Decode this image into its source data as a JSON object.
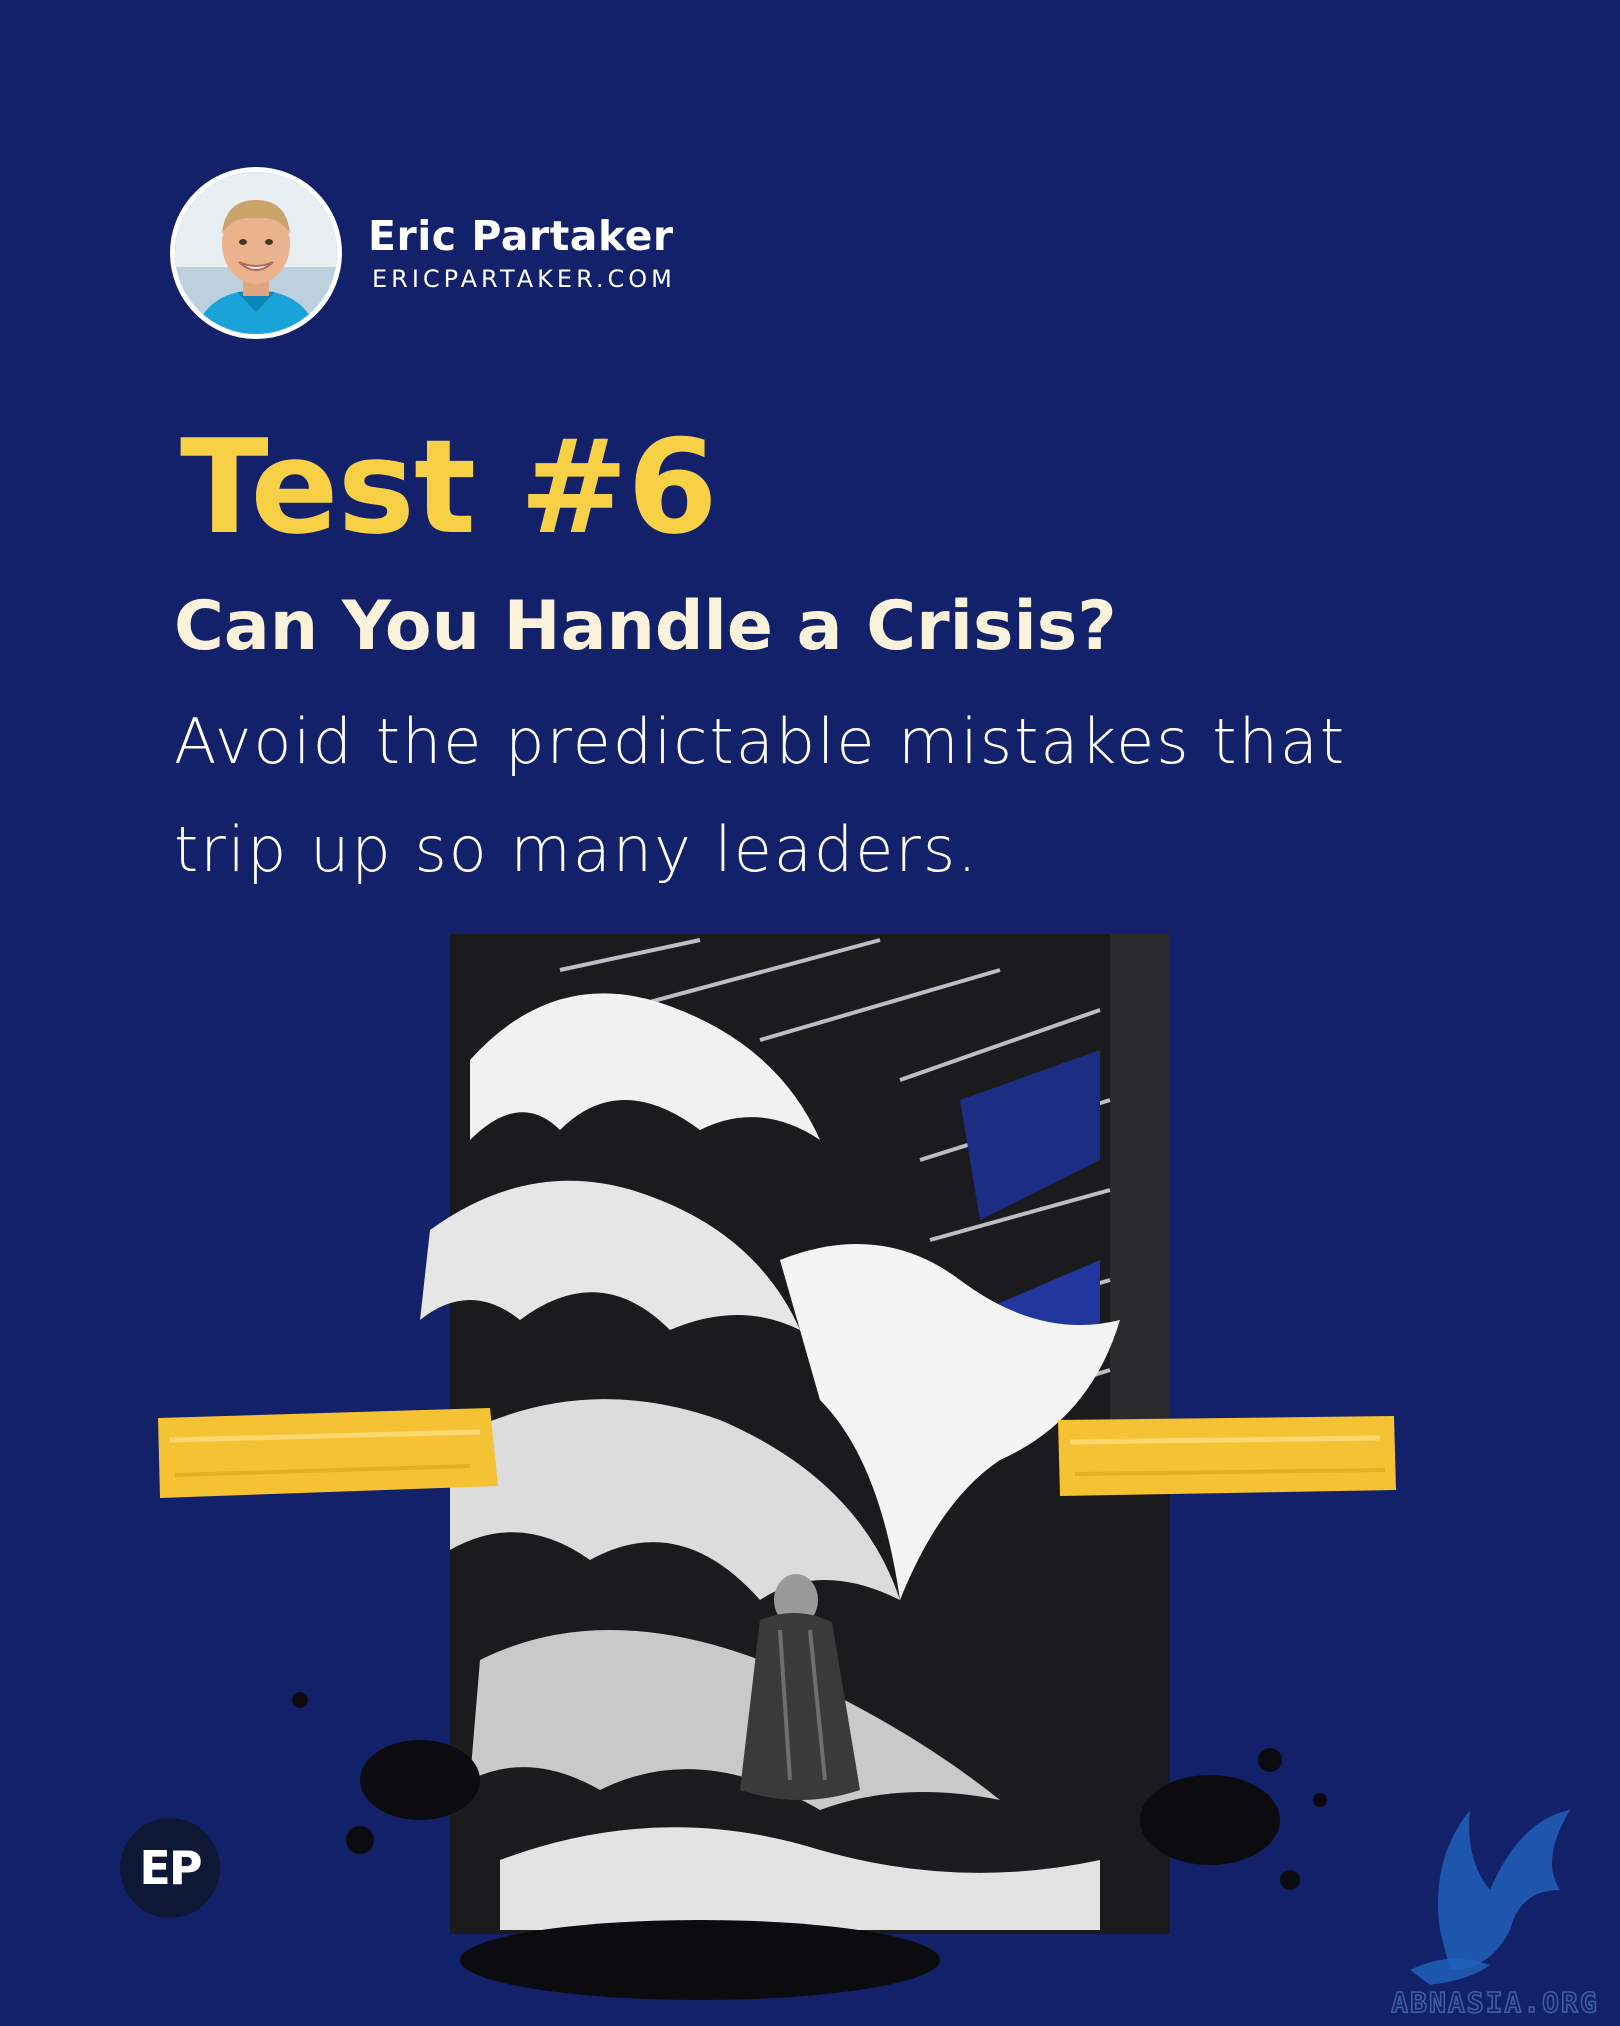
{
  "author": {
    "name": "Eric Partaker",
    "website": "ERICPARTAKER.COM",
    "avatar_icon": "portrait-photo"
  },
  "headline": {
    "title": "Test #6",
    "subtitle": "Can You Handle a Crisis?",
    "body": "Avoid the predictable mistakes that trip up so many leaders."
  },
  "badge": {
    "label": "EP"
  },
  "watermark": {
    "text": "ABNASIA.ORG",
    "icon": "griffin-logo"
  },
  "colors": {
    "background": "#13206a",
    "accent_yellow": "#f8d046",
    "subtitle_cream": "#fbf2dc",
    "tape_yellow": "#f4c233",
    "watermark_blue": "#2160b8"
  }
}
